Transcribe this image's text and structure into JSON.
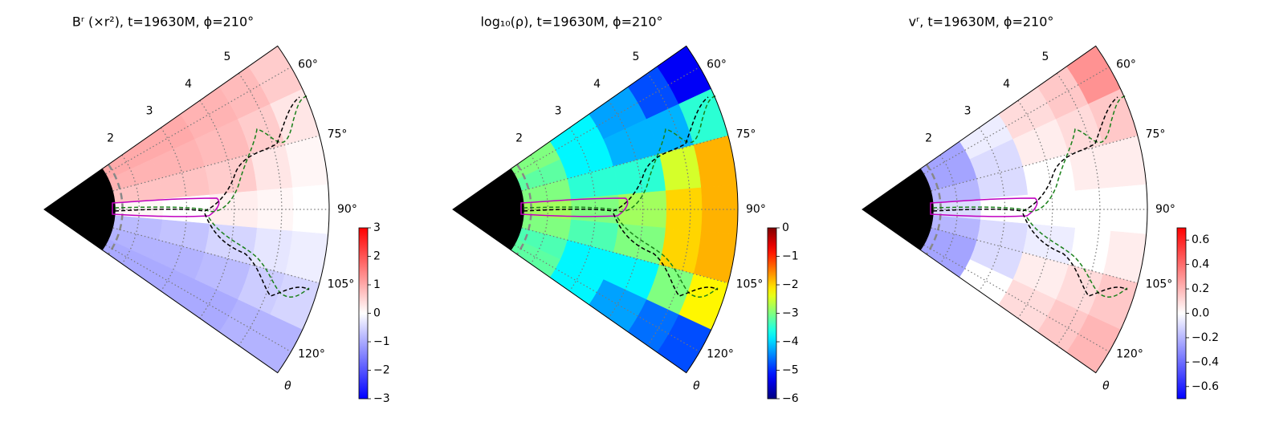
{
  "chart_data": [
    {
      "type": "polar-heatmap",
      "title": "Bʳ (×r²), t=19630M, ϕ=210°",
      "colormap": "bwr",
      "rlim": [
        0,
        6
      ],
      "thetalim": [
        55,
        125
      ],
      "rticks": [
        2,
        3,
        4,
        5
      ],
      "thetaticks": [
        {
          "value": 60,
          "label": "60°"
        },
        {
          "value": 75,
          "label": "75°"
        },
        {
          "value": 90,
          "label": "90°"
        },
        {
          "value": 105,
          "label": "105°"
        },
        {
          "value": 120,
          "label": "120°"
        }
      ],
      "theta_label": "θ",
      "grid": true,
      "r_bins": [
        1.5,
        2.5,
        3.5,
        4.5,
        5.25,
        6
      ],
      "theta_bins": [
        55,
        65,
        75,
        85,
        95,
        105,
        115,
        125
      ],
      "values": [
        [
          1.0,
          0.9,
          0.7,
          0.1,
          -0.8,
          -0.9,
          -1.0
        ],
        [
          1.0,
          0.9,
          0.7,
          0.0,
          -0.7,
          -0.9,
          -1.0
        ],
        [
          0.9,
          0.8,
          0.6,
          0.2,
          -0.5,
          -0.8,
          -1.0
        ],
        [
          0.8,
          0.6,
          0.3,
          0.1,
          -0.3,
          -0.6,
          -0.9
        ],
        [
          0.6,
          0.3,
          0.1,
          0.0,
          -0.2,
          -0.5,
          -0.9
        ]
      ],
      "clim": [
        -3,
        3
      ],
      "cticks": [
        {
          "value": -3,
          "label": "−3"
        },
        {
          "value": -2,
          "label": "−2"
        },
        {
          "value": -1,
          "label": "−1"
        },
        0,
        1,
        2,
        3
      ]
    },
    {
      "type": "polar-heatmap",
      "title": "log₁₀(ρ), t=19630M, ϕ=210°",
      "colormap": "jet",
      "rlim": [
        0,
        6
      ],
      "thetalim": [
        55,
        125
      ],
      "rticks": [
        2,
        3,
        4,
        5
      ],
      "thetaticks": [
        {
          "value": 60,
          "label": "60°"
        },
        {
          "value": 75,
          "label": "75°"
        },
        {
          "value": 90,
          "label": "90°"
        },
        {
          "value": 105,
          "label": "105°"
        },
        {
          "value": 120,
          "label": "120°"
        }
      ],
      "theta_label": "θ",
      "grid": true,
      "r_bins": [
        1.5,
        2.5,
        3.5,
        4.5,
        5.25,
        6
      ],
      "theta_bins": [
        55,
        65,
        75,
        85,
        95,
        105,
        115,
        125
      ],
      "values": [
        [
          -3.0,
          -3.2,
          -3.0,
          -2.8,
          -3.0,
          -3.3,
          -3.2
        ],
        [
          -3.8,
          -3.8,
          -3.5,
          -3.0,
          -3.3,
          -3.8,
          -3.8
        ],
        [
          -4.3,
          -4.2,
          -3.5,
          -2.8,
          -3.0,
          -3.8,
          -4.3
        ],
        [
          -4.8,
          -4.2,
          -2.5,
          -2.0,
          -2.0,
          -3.0,
          -4.6
        ],
        [
          -5.3,
          -3.5,
          -1.8,
          -1.8,
          -1.8,
          -2.2,
          -4.8
        ]
      ],
      "clim": [
        -6,
        0
      ],
      "cticks": [
        {
          "value": -6,
          "label": "−6"
        },
        {
          "value": -5,
          "label": "−5"
        },
        {
          "value": -4,
          "label": "−4"
        },
        {
          "value": -3,
          "label": "−3"
        },
        {
          "value": -2,
          "label": "−2"
        },
        {
          "value": -1,
          "label": "−1"
        },
        0
      ]
    },
    {
      "type": "polar-heatmap",
      "title": "vʳ, t=19630M, ϕ=210°",
      "colormap": "bwr",
      "rlim": [
        0,
        6
      ],
      "thetalim": [
        55,
        125
      ],
      "rticks": [
        2,
        3,
        4,
        5
      ],
      "thetaticks": [
        {
          "value": 60,
          "label": "60°"
        },
        {
          "value": 75,
          "label": "75°"
        },
        {
          "value": 90,
          "label": "90°"
        },
        {
          "value": 105,
          "label": "105°"
        },
        {
          "value": 120,
          "label": "120°"
        }
      ],
      "theta_label": "θ",
      "grid": true,
      "r_bins": [
        1.5,
        2.5,
        3.5,
        4.5,
        5.25,
        6
      ],
      "theta_bins": [
        55,
        65,
        75,
        85,
        95,
        105,
        115,
        125
      ],
      "values": [
        [
          -0.25,
          -0.25,
          -0.2,
          -0.1,
          -0.2,
          -0.25,
          -0.25
        ],
        [
          -0.05,
          -0.1,
          -0.1,
          0.0,
          -0.1,
          -0.1,
          0.0
        ],
        [
          0.1,
          0.05,
          0.0,
          0.0,
          -0.05,
          0.05,
          0.1
        ],
        [
          0.15,
          0.1,
          0.05,
          0.0,
          0.0,
          0.1,
          0.15
        ],
        [
          0.3,
          0.15,
          0.05,
          0.0,
          0.05,
          0.15,
          0.2
        ]
      ],
      "clim": [
        -0.7,
        0.7
      ],
      "cticks": [
        {
          "value": -0.6,
          "label": "−0.6"
        },
        {
          "value": -0.4,
          "label": "−0.4"
        },
        {
          "value": -0.2,
          "label": "−0.2"
        },
        {
          "value": 0.0,
          "label": "0.0"
        },
        0.2,
        0.4,
        0.6
      ]
    }
  ]
}
